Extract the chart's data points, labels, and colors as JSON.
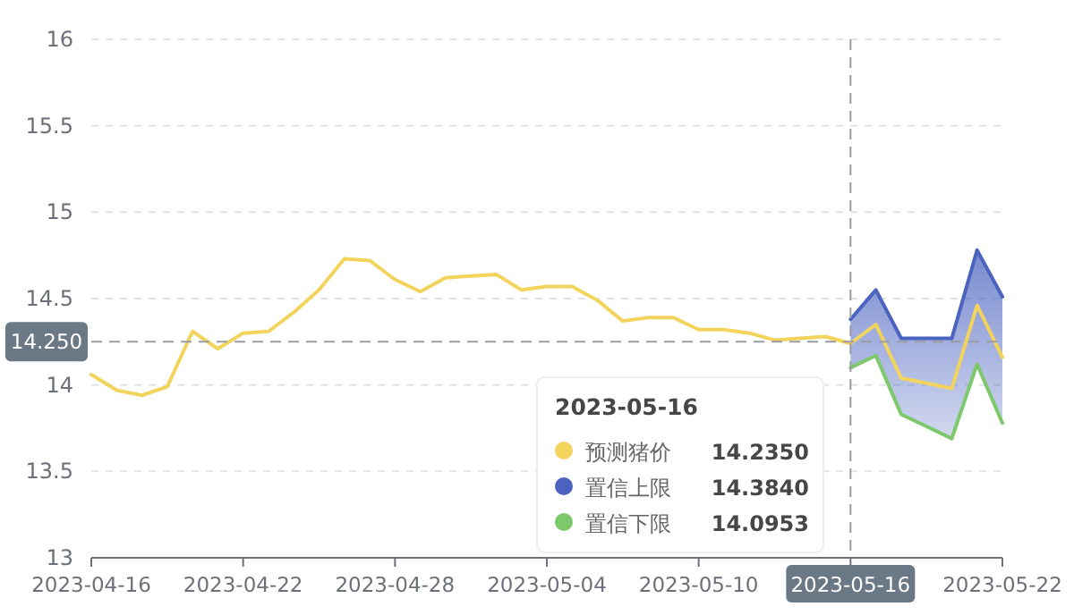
{
  "chart_data": {
    "type": "line",
    "x": [
      "2023-04-16",
      "2023-04-17",
      "2023-04-18",
      "2023-04-19",
      "2023-04-20",
      "2023-04-21",
      "2023-04-22",
      "2023-04-23",
      "2023-04-24",
      "2023-04-25",
      "2023-04-26",
      "2023-04-27",
      "2023-04-28",
      "2023-04-29",
      "2023-04-30",
      "2023-05-01",
      "2023-05-02",
      "2023-05-03",
      "2023-05-04",
      "2023-05-05",
      "2023-05-06",
      "2023-05-07",
      "2023-05-08",
      "2023-05-09",
      "2023-05-10",
      "2023-05-11",
      "2023-05-12",
      "2023-05-13",
      "2023-05-14",
      "2023-05-15",
      "2023-05-16",
      "2023-05-17",
      "2023-05-18",
      "2023-05-19",
      "2023-05-20",
      "2023-05-21",
      "2023-05-22"
    ],
    "series": [
      {
        "name": "预测猪价",
        "color": "#f2d45c",
        "values": [
          14.06,
          13.97,
          13.94,
          13.99,
          14.31,
          14.21,
          14.3,
          14.31,
          14.42,
          14.55,
          14.73,
          14.72,
          14.61,
          14.54,
          14.62,
          14.63,
          14.64,
          14.55,
          14.57,
          14.57,
          14.49,
          14.37,
          14.39,
          14.39,
          14.32,
          14.32,
          14.3,
          14.26,
          14.27,
          14.28,
          14.24,
          14.35,
          14.04,
          14.01,
          13.98,
          14.46,
          14.16
        ],
        "lower": [
          null,
          null,
          null,
          null,
          null,
          null,
          null,
          null,
          null,
          null,
          null,
          null,
          null,
          null,
          null,
          null,
          null,
          null,
          null,
          null,
          null,
          null,
          null,
          null,
          null,
          null,
          null,
          null,
          null,
          null,
          14.1,
          14.17,
          13.83,
          13.76,
          13.69,
          14.12,
          13.78
        ],
        "upper": [
          null,
          null,
          null,
          null,
          null,
          null,
          null,
          null,
          null,
          null,
          null,
          null,
          null,
          null,
          null,
          null,
          null,
          null,
          null,
          null,
          null,
          null,
          null,
          null,
          null,
          null,
          null,
          null,
          null,
          null,
          14.38,
          14.55,
          14.27,
          14.27,
          14.27,
          14.78,
          14.51
        ]
      },
      {
        "name": "置信上限",
        "color": "#4a63bf",
        "x": [
          "2023-05-16",
          "2023-05-17",
          "2023-05-18",
          "2023-05-19",
          "2023-05-20",
          "2023-05-21",
          "2023-05-22"
        ],
        "values": [
          14.38,
          14.55,
          14.27,
          14.27,
          14.27,
          14.78,
          14.51
        ]
      },
      {
        "name": "置信下限",
        "color": "#7cc86a",
        "x": [
          "2023-05-16",
          "2023-05-17",
          "2023-05-18",
          "2023-05-19",
          "2023-05-20",
          "2023-05-21",
          "2023-05-22"
        ],
        "values": [
          14.1,
          14.17,
          13.83,
          13.76,
          13.69,
          14.12,
          13.78
        ]
      }
    ],
    "annotations": [
      "14.2350",
      "14.3840",
      "14.0953"
    ],
    "xlim": [
      "2023-04-16",
      "2023-05-22"
    ],
    "xticks": [
      "2023-04-16",
      "2023-04-22",
      "2023-04-28",
      "2023-05-04",
      "2023-05-10",
      {
        "value": "2023-05-16",
        "label": null
      },
      "2023-05-22"
    ],
    "ylim": [
      13,
      16
    ],
    "yticks": [
      13,
      13.5,
      14,
      14.5,
      15,
      15.5,
      16
    ],
    "grid": "y",
    "legend": "bottom",
    "legend_title": "2023-05-16",
    "marker": "none",
    "line_style": "solid",
    "ref_lines": [
      {
        "axis": "x",
        "value": "2023-05-16",
        "label": "2023-05-16"
      },
      {
        "axis": "y",
        "value": 14.25,
        "label": "14.250"
      }
    ]
  }
}
